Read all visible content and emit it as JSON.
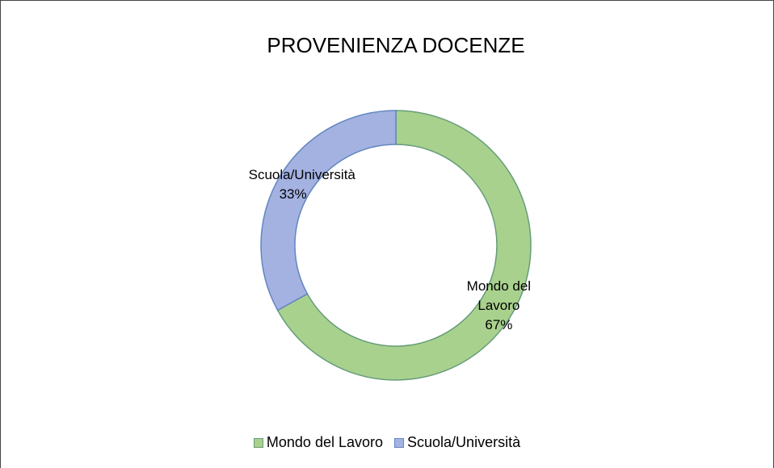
{
  "chart_data": {
    "type": "pie",
    "title": "PROVENIENZA DOCENZE",
    "categories": [
      "Mondo del Lavoro",
      "Scuola/Università"
    ],
    "values": [
      67,
      33
    ],
    "value_labels": [
      "67%",
      "33%"
    ],
    "colors": [
      "#a9d18e",
      "#a4b2e2"
    ],
    "legend": "bottom"
  }
}
